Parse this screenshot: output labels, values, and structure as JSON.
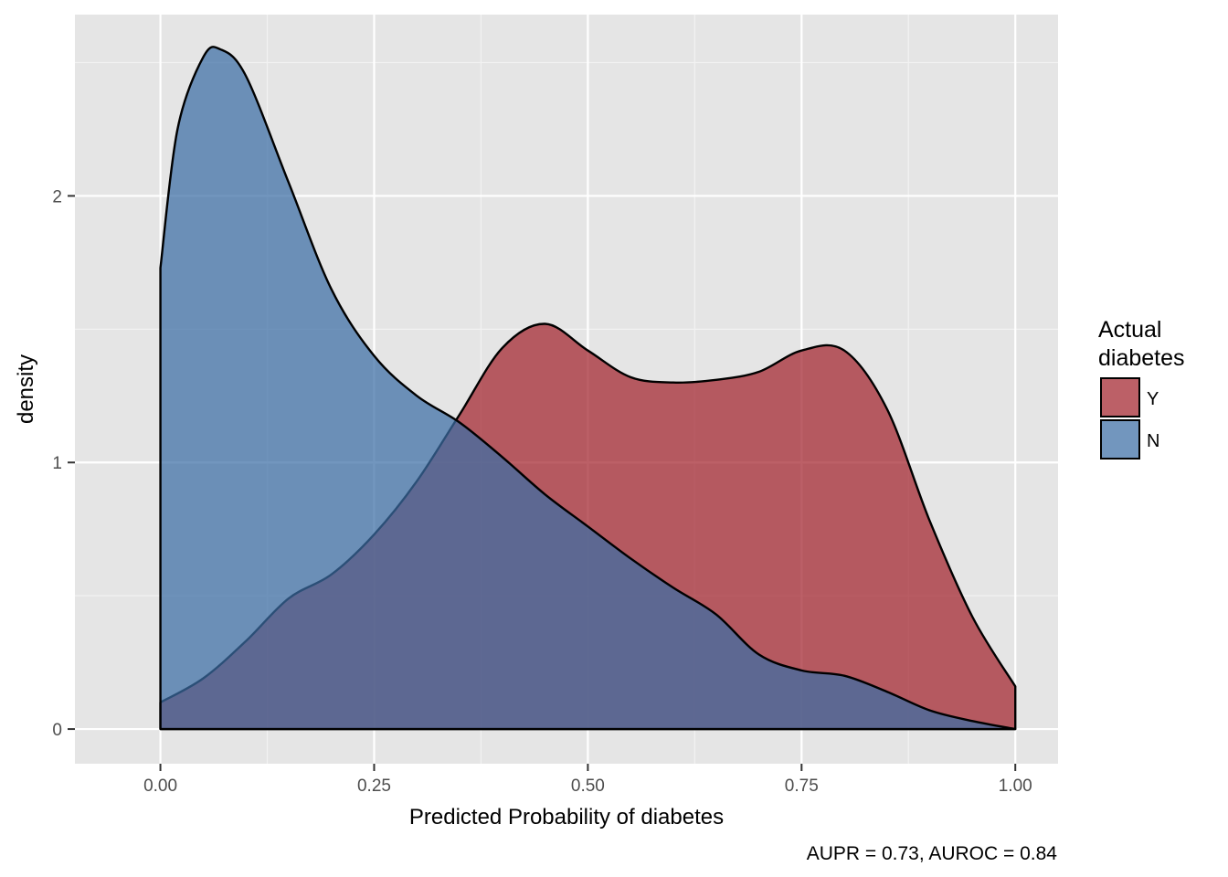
{
  "chart_data": {
    "type": "area",
    "xlabel": "Predicted Probability of diabetes",
    "ylabel": "density",
    "caption": "AUPR = 0.73, AUROC = 0.84",
    "xlim": [
      -0.1,
      1.05
    ],
    "ylim": [
      -0.13,
      2.68
    ],
    "x_ticks": [
      0,
      0.25,
      0.5,
      0.75,
      1
    ],
    "x_tick_labels": [
      "0.00",
      "0.25",
      "0.50",
      "0.75",
      "1.00"
    ],
    "y_ticks": [
      0,
      1,
      2
    ],
    "y_tick_labels": [
      "0",
      "1",
      "2"
    ],
    "grid": true,
    "legend": {
      "title_lines": [
        "Actual",
        "diabetes"
      ],
      "placement": "right",
      "entries": [
        {
          "label": "Y",
          "color": "#a2232c"
        },
        {
          "label": "N",
          "color": "#3b6ea5"
        }
      ]
    },
    "series": [
      {
        "name": "Y",
        "color": "#a2232c",
        "x": [
          0,
          0.05,
          0.1,
          0.15,
          0.2,
          0.25,
          0.3,
          0.35,
          0.4,
          0.45,
          0.5,
          0.55,
          0.6,
          0.65,
          0.7,
          0.75,
          0.8,
          0.85,
          0.9,
          0.95,
          1
        ],
        "y": [
          0.1,
          0.19,
          0.33,
          0.49,
          0.58,
          0.73,
          0.93,
          1.18,
          1.43,
          1.52,
          1.42,
          1.32,
          1.3,
          1.31,
          1.34,
          1.42,
          1.42,
          1.2,
          0.78,
          0.42,
          0.16
        ]
      },
      {
        "name": "N",
        "color": "#3b6ea5",
        "x": [
          0,
          0.02,
          0.05,
          0.07,
          0.1,
          0.15,
          0.2,
          0.25,
          0.3,
          0.35,
          0.4,
          0.45,
          0.5,
          0.55,
          0.6,
          0.65,
          0.7,
          0.75,
          0.8,
          0.85,
          0.9,
          0.95,
          1
        ],
        "y": [
          1.73,
          2.25,
          2.52,
          2.55,
          2.45,
          2.05,
          1.65,
          1.4,
          1.25,
          1.15,
          1.02,
          0.88,
          0.76,
          0.64,
          0.53,
          0.43,
          0.28,
          0.22,
          0.2,
          0.14,
          0.07,
          0.03,
          0.0
        ]
      }
    ]
  }
}
